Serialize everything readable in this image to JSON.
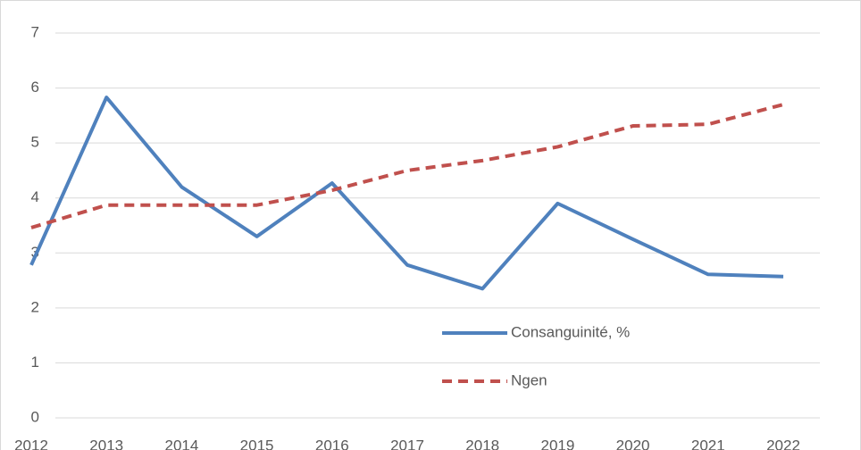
{
  "chart_data": {
    "type": "line",
    "categories": [
      "2012",
      "2013",
      "2014",
      "2015",
      "2016",
      "2017",
      "2018",
      "2019",
      "2020",
      "2021",
      "2022"
    ],
    "series": [
      {
        "name": "Consanguinité, %",
        "color": "#4f81bd",
        "dash": false,
        "values": [
          2.78,
          5.83,
          4.2,
          3.3,
          4.27,
          2.78,
          2.35,
          3.9,
          3.25,
          2.61,
          2.57
        ]
      },
      {
        "name": "Ngen",
        "color": "#c0504d",
        "dash": true,
        "values": [
          3.46,
          3.87,
          3.87,
          3.87,
          4.14,
          4.5,
          4.68,
          4.93,
          5.31,
          5.34,
          5.7
        ]
      }
    ],
    "ylim": [
      0,
      7
    ],
    "yticks": [
      0,
      1,
      2,
      3,
      4,
      5,
      6,
      7
    ],
    "grid": true
  }
}
